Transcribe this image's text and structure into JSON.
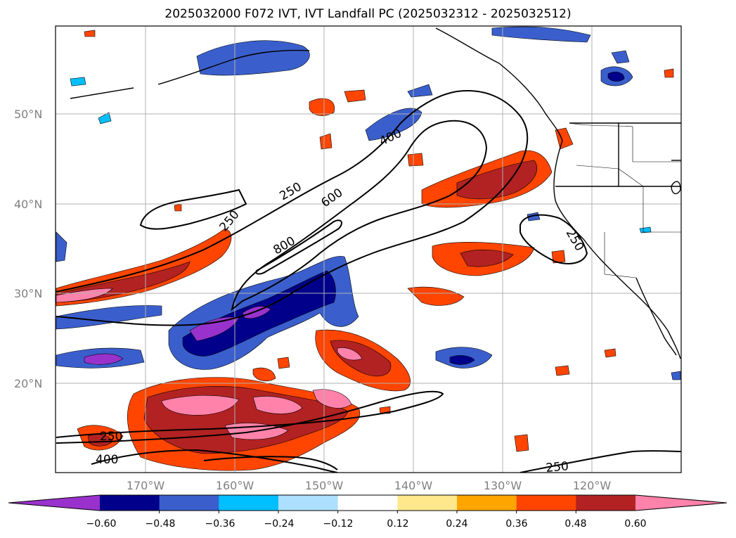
{
  "title": "2025032000 F072 IVT, IVT Landfall PC (2025032312 - 2025032512)",
  "map": {
    "lat_labels": [
      "50°N",
      "40°N",
      "30°N",
      "20°N"
    ],
    "lon_labels": [
      "170°W",
      "160°W",
      "150°W",
      "140°W",
      "130°W",
      "120°W"
    ],
    "contour_labels": [
      "400",
      "250",
      "600",
      "250",
      "800",
      "250",
      "250",
      "400",
      "250"
    ]
  },
  "colorbar": {
    "ticks": [
      "−0.60",
      "−0.48",
      "−0.36",
      "−0.24",
      "−0.12",
      "0.12",
      "0.24",
      "0.36",
      "0.48",
      "0.60"
    ],
    "colors": [
      "#9932CC",
      "#00008B",
      "#3A5FCD",
      "#00BFFF",
      "#ADDFFF",
      "#FFFFFF",
      "#FFE88C",
      "#FFA500",
      "#FF4500",
      "#B22222",
      "#FF82AB"
    ]
  }
}
